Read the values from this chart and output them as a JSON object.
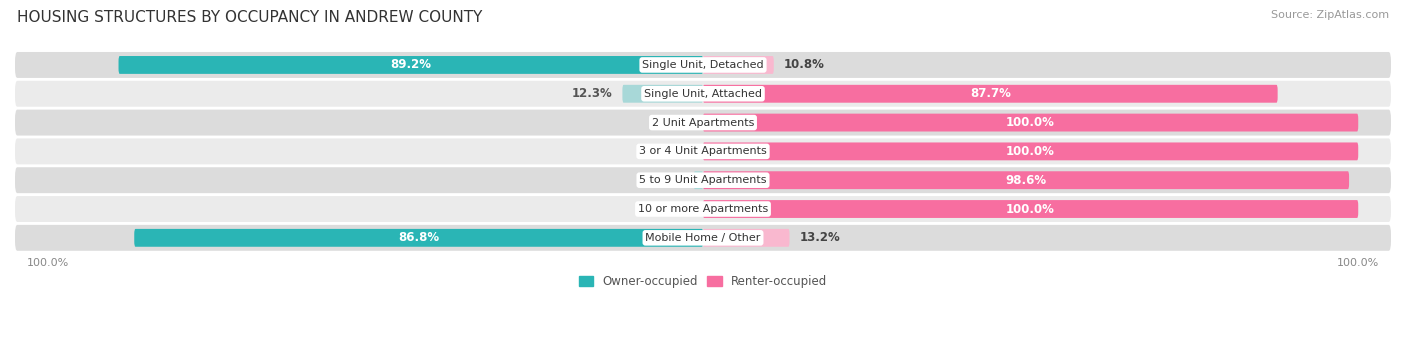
{
  "title": "HOUSING STRUCTURES BY OCCUPANCY IN ANDREW COUNTY",
  "source": "Source: ZipAtlas.com",
  "categories": [
    "Single Unit, Detached",
    "Single Unit, Attached",
    "2 Unit Apartments",
    "3 or 4 Unit Apartments",
    "5 to 9 Unit Apartments",
    "10 or more Apartments",
    "Mobile Home / Other"
  ],
  "owner_pct": [
    89.2,
    12.3,
    0.0,
    0.0,
    1.4,
    0.0,
    86.8
  ],
  "renter_pct": [
    10.8,
    87.7,
    100.0,
    100.0,
    98.6,
    100.0,
    13.2
  ],
  "owner_color_strong": "#2ab5b5",
  "owner_color_light": "#a8d8d8",
  "renter_color_strong": "#f76ea0",
  "renter_color_light": "#f9b8cf",
  "row_bg_dark": "#dcdcdc",
  "row_bg_light": "#ebebeb",
  "bar_height": 0.62,
  "title_fontsize": 11,
  "label_fontsize": 8.5,
  "tick_fontsize": 8,
  "source_fontsize": 8,
  "xlim": 105,
  "strong_threshold": 20
}
